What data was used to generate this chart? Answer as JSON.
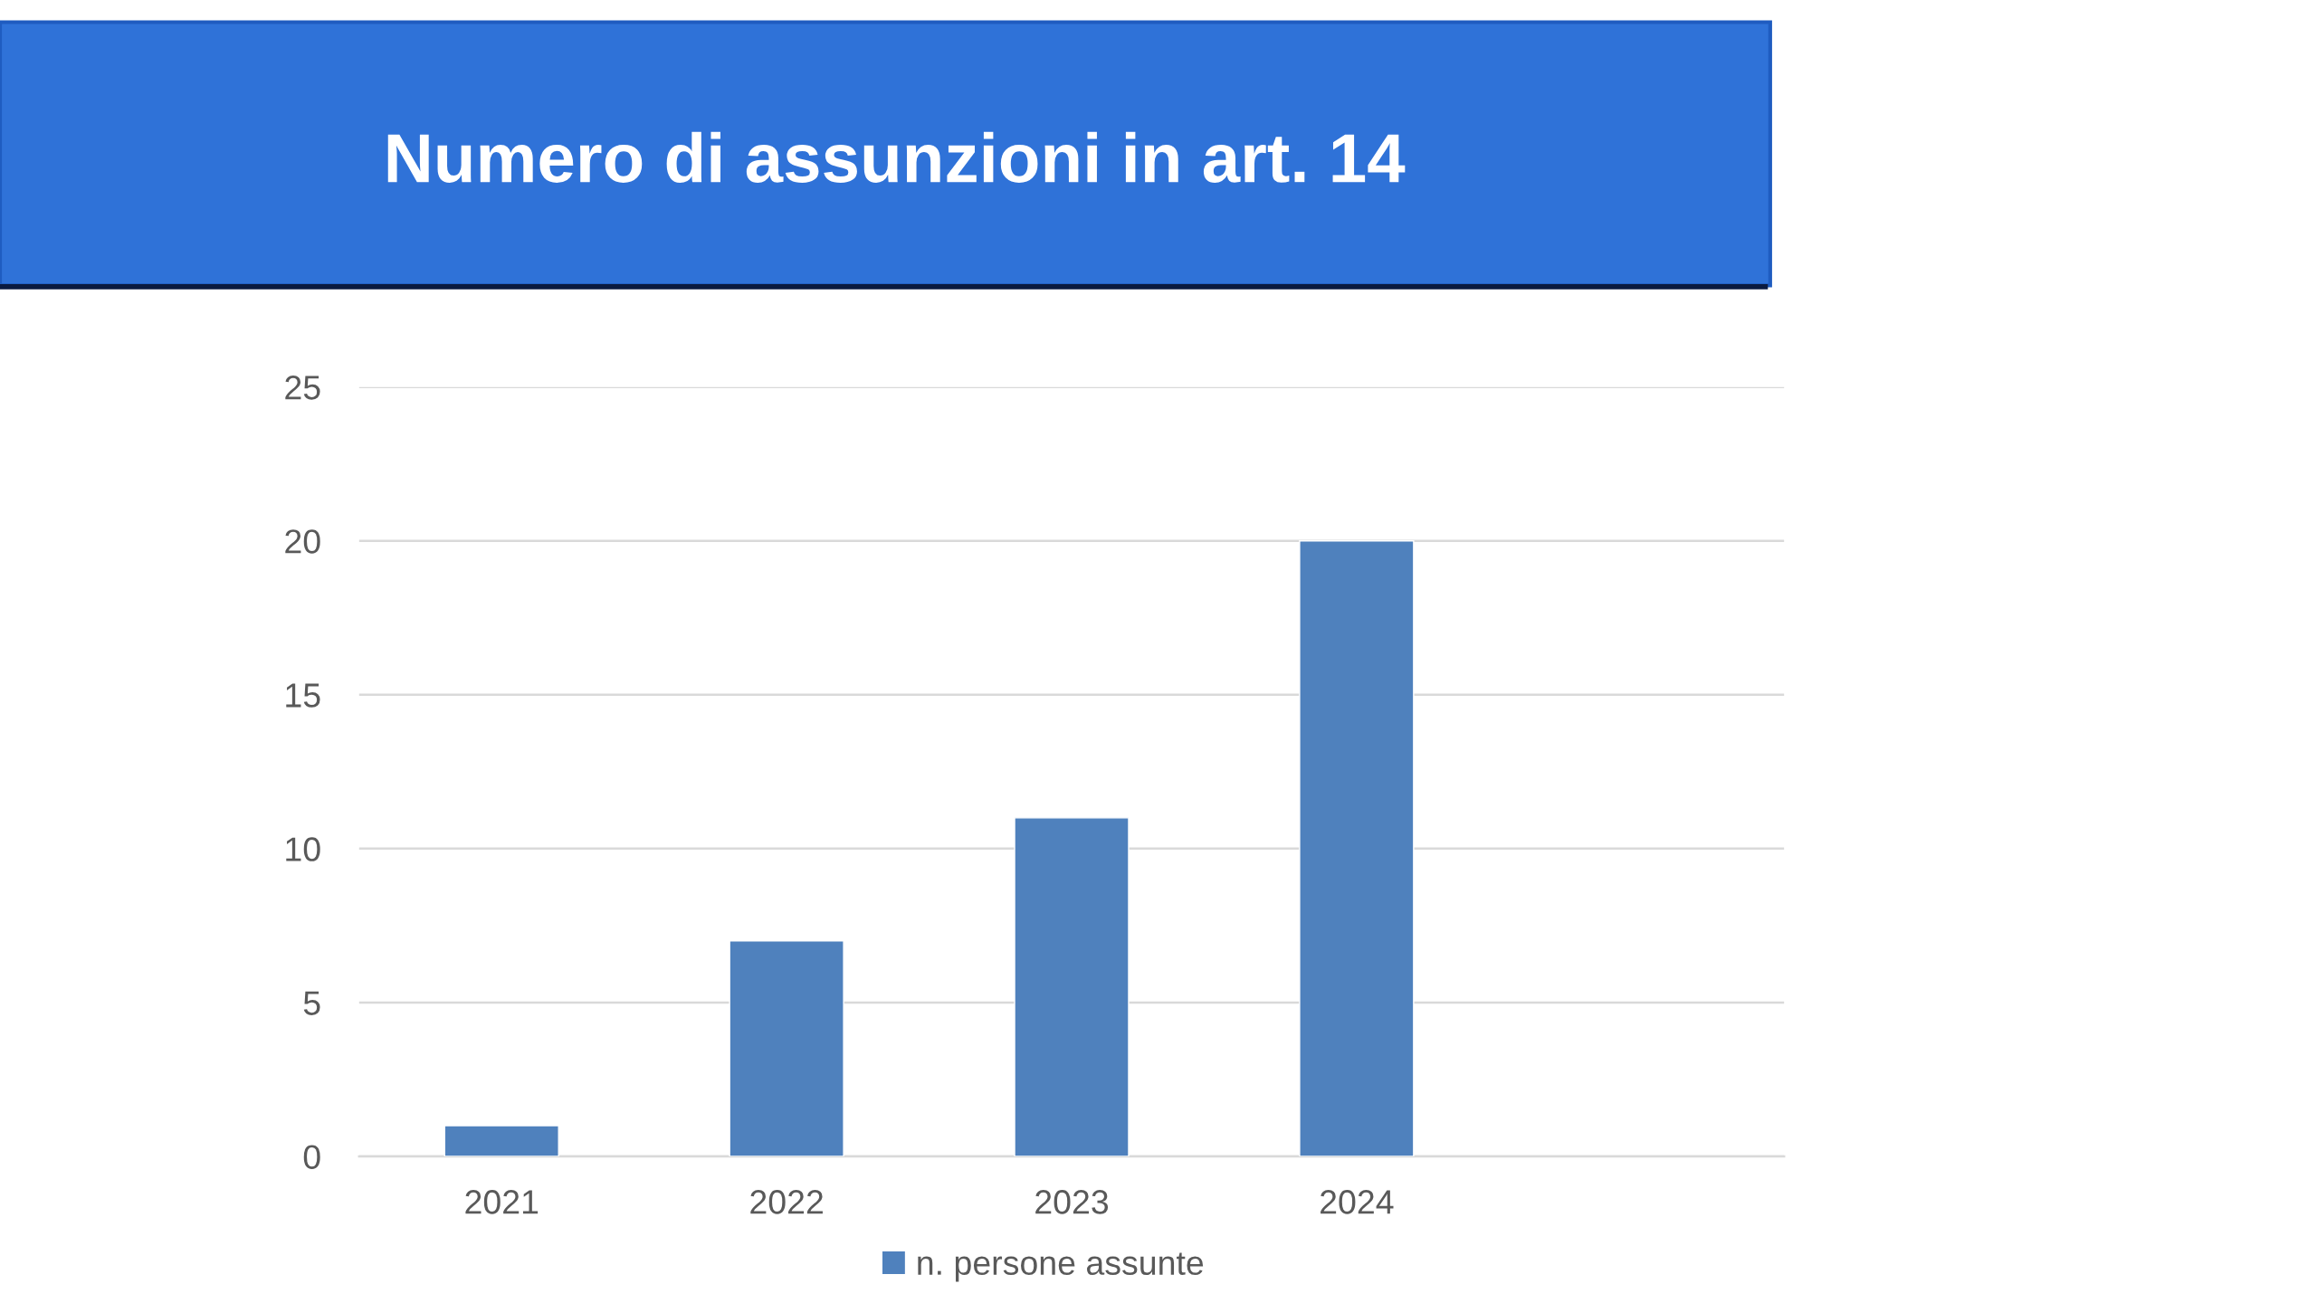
{
  "chart_data": {
    "type": "bar",
    "title": "Numero di assunzioni in art. 14",
    "categories": [
      "2021",
      "2022",
      "2023",
      "2024",
      null
    ],
    "series": [
      {
        "name": "n. persone assunte",
        "color": "#4f81bd",
        "values": [
          1,
          7,
          11,
          20,
          null
        ]
      }
    ],
    "ylim": [
      0,
      25
    ],
    "yticks": [
      0,
      5,
      10,
      15,
      20,
      25
    ],
    "grid": "y",
    "legend": "bottom"
  }
}
